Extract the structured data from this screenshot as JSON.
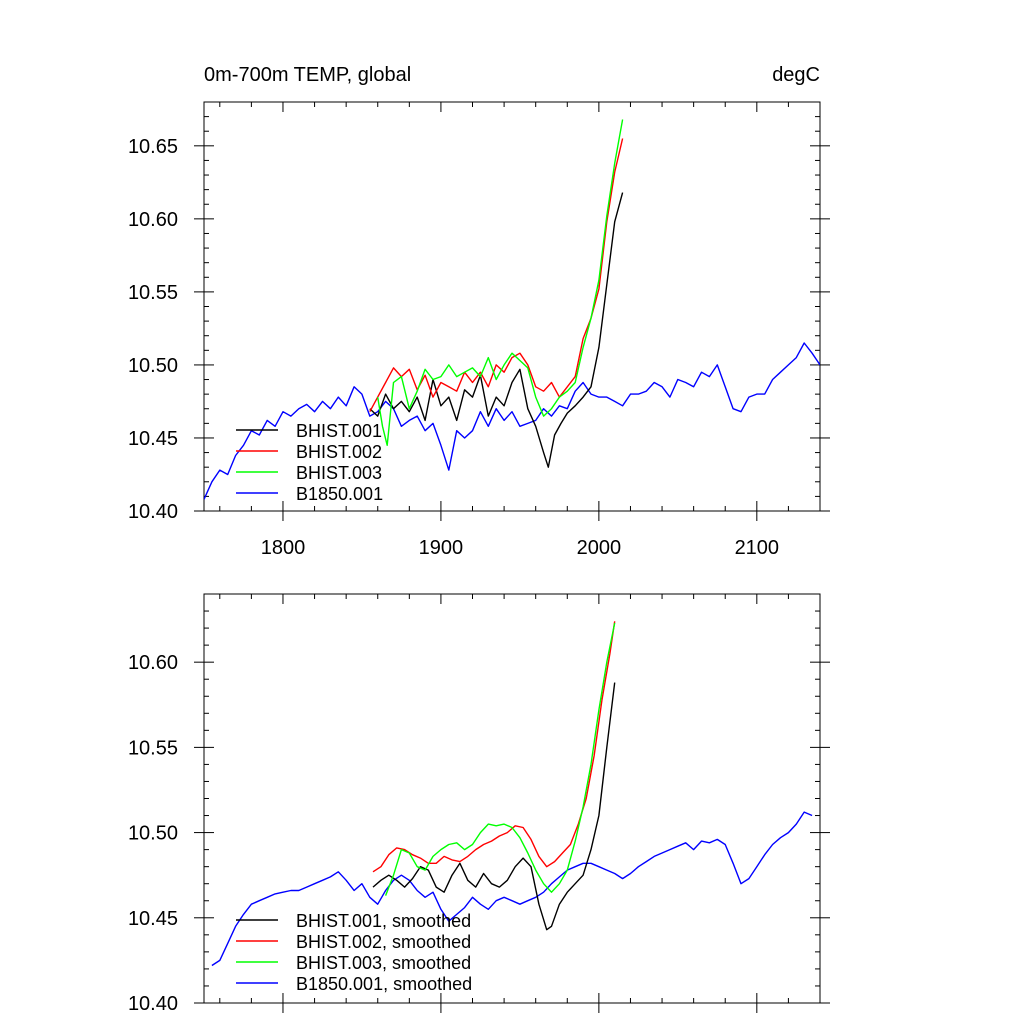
{
  "chart_data": [
    {
      "type": "line",
      "title_left": "0m-700m TEMP, global",
      "title_right": "degC",
      "xlim": [
        1750,
        2140
      ],
      "ylim": [
        10.4,
        10.68
      ],
      "xticks": [
        1800,
        1900,
        2000,
        2100
      ],
      "xtick_labels": [
        "1800",
        "1900",
        "2000",
        "2100"
      ],
      "yticks": [
        10.4,
        10.45,
        10.5,
        10.55,
        10.6,
        10.65
      ],
      "ytick_labels": [
        "10.40",
        "10.45",
        "10.50",
        "10.55",
        "10.60",
        "10.65"
      ],
      "grid": false,
      "legend_position": "bottom-left",
      "series": [
        {
          "name": "BHIST.001",
          "color": "#000000",
          "x": [
            1855,
            1860,
            1865,
            1870,
            1875,
            1880,
            1885,
            1890,
            1895,
            1900,
            1905,
            1910,
            1915,
            1920,
            1925,
            1930,
            1935,
            1940,
            1945,
            1950,
            1955,
            1960,
            1965,
            1968,
            1972,
            1976,
            1980,
            1985,
            1990,
            1995,
            2000,
            2005,
            2010,
            2015
          ],
          "y": [
            10.47,
            10.465,
            10.48,
            10.47,
            10.475,
            10.468,
            10.478,
            10.462,
            10.49,
            10.472,
            10.478,
            10.462,
            10.483,
            10.478,
            10.493,
            10.465,
            10.478,
            10.472,
            10.488,
            10.497,
            10.47,
            10.458,
            10.44,
            10.43,
            10.452,
            10.46,
            10.467,
            10.472,
            10.478,
            10.485,
            10.512,
            10.555,
            10.598,
            10.618
          ]
        },
        {
          "name": "BHIST.002",
          "color": "#ff0000",
          "x": [
            1855,
            1860,
            1865,
            1870,
            1875,
            1880,
            1885,
            1890,
            1895,
            1900,
            1905,
            1910,
            1915,
            1920,
            1925,
            1930,
            1935,
            1940,
            1945,
            1950,
            1955,
            1960,
            1965,
            1970,
            1975,
            1980,
            1985,
            1990,
            1995,
            2000,
            2005,
            2010,
            2015
          ],
          "y": [
            10.468,
            10.478,
            10.488,
            10.498,
            10.492,
            10.497,
            10.483,
            10.493,
            10.478,
            10.488,
            10.485,
            10.482,
            10.495,
            10.488,
            10.495,
            10.485,
            10.5,
            10.495,
            10.505,
            10.508,
            10.5,
            10.485,
            10.482,
            10.488,
            10.478,
            10.485,
            10.492,
            10.518,
            10.532,
            10.552,
            10.598,
            10.632,
            10.655
          ]
        },
        {
          "name": "BHIST.003",
          "color": "#00ff00",
          "x": [
            1860,
            1863,
            1866,
            1870,
            1875,
            1880,
            1885,
            1890,
            1895,
            1900,
            1905,
            1910,
            1915,
            1920,
            1925,
            1930,
            1935,
            1940,
            1945,
            1950,
            1955,
            1960,
            1965,
            1970,
            1975,
            1980,
            1985,
            1990,
            1995,
            2000,
            2005,
            2010,
            2015
          ],
          "y": [
            10.478,
            10.458,
            10.445,
            10.488,
            10.492,
            10.47,
            10.482,
            10.497,
            10.49,
            10.492,
            10.5,
            10.492,
            10.495,
            10.498,
            10.492,
            10.505,
            10.49,
            10.5,
            10.508,
            10.503,
            10.498,
            10.478,
            10.465,
            10.47,
            10.478,
            10.482,
            10.488,
            10.512,
            10.532,
            10.558,
            10.602,
            10.638,
            10.668
          ]
        },
        {
          "name": "B1850.001",
          "color": "#0000ff",
          "x": [
            1750,
            1755,
            1760,
            1765,
            1770,
            1775,
            1780,
            1785,
            1790,
            1795,
            1800,
            1805,
            1810,
            1815,
            1820,
            1825,
            1830,
            1835,
            1840,
            1845,
            1850,
            1855,
            1860,
            1865,
            1870,
            1875,
            1880,
            1885,
            1890,
            1895,
            1900,
            1905,
            1910,
            1915,
            1920,
            1925,
            1930,
            1935,
            1940,
            1945,
            1950,
            1955,
            1960,
            1965,
            1970,
            1975,
            1980,
            1985,
            1990,
            1995,
            2000,
            2005,
            2010,
            2015,
            2020,
            2025,
            2030,
            2035,
            2040,
            2045,
            2050,
            2055,
            2060,
            2065,
            2070,
            2075,
            2080,
            2085,
            2090,
            2095,
            2100,
            2105,
            2110,
            2115,
            2120,
            2125,
            2130,
            2135,
            2140
          ],
          "y": [
            10.408,
            10.42,
            10.428,
            10.425,
            10.438,
            10.445,
            10.455,
            10.452,
            10.462,
            10.458,
            10.468,
            10.465,
            10.47,
            10.473,
            10.468,
            10.475,
            10.47,
            10.478,
            10.472,
            10.485,
            10.48,
            10.465,
            10.468,
            10.475,
            10.47,
            10.458,
            10.462,
            10.465,
            10.455,
            10.46,
            10.445,
            10.428,
            10.455,
            10.45,
            10.455,
            10.468,
            10.458,
            10.47,
            10.462,
            10.468,
            10.458,
            10.46,
            10.462,
            10.47,
            10.465,
            10.472,
            10.47,
            10.482,
            10.488,
            10.48,
            10.478,
            10.478,
            10.475,
            10.472,
            10.48,
            10.48,
            10.482,
            10.488,
            10.485,
            10.478,
            10.49,
            10.488,
            10.485,
            10.495,
            10.492,
            10.5,
            10.485,
            10.47,
            10.468,
            10.478,
            10.48,
            10.48,
            10.49,
            10.495,
            10.5,
            10.505,
            10.515,
            10.508,
            10.5
          ]
        }
      ]
    },
    {
      "type": "line",
      "xlim": [
        1750,
        2140
      ],
      "ylim": [
        10.4,
        10.64
      ],
      "xticks": [
        1800,
        1900,
        2000,
        2100
      ],
      "yticks": [
        10.4,
        10.45,
        10.5,
        10.55,
        10.6
      ],
      "ytick_labels": [
        "10.40",
        "10.45",
        "10.50",
        "10.55",
        "10.60"
      ],
      "grid": false,
      "legend_position": "bottom-left",
      "series": [
        {
          "name": "BHIST.001, smoothed",
          "color": "#000000",
          "x": [
            1857,
            1862,
            1867,
            1872,
            1877,
            1882,
            1887,
            1892,
            1897,
            1902,
            1907,
            1912,
            1917,
            1922,
            1927,
            1932,
            1937,
            1942,
            1947,
            1952,
            1957,
            1962,
            1967,
            1970,
            1975,
            1980,
            1985,
            1990,
            1995,
            2000,
            2005,
            2010
          ],
          "y": [
            10.468,
            10.472,
            10.475,
            10.472,
            10.468,
            10.473,
            10.48,
            10.478,
            10.468,
            10.465,
            10.475,
            10.482,
            10.472,
            10.468,
            10.476,
            10.47,
            10.468,
            10.472,
            10.48,
            10.485,
            10.48,
            10.458,
            10.443,
            10.445,
            10.458,
            10.465,
            10.47,
            10.475,
            10.49,
            10.51,
            10.55,
            10.588
          ]
        },
        {
          "name": "BHIST.002, smoothed",
          "color": "#ff0000",
          "x": [
            1857,
            1862,
            1867,
            1872,
            1877,
            1882,
            1887,
            1892,
            1897,
            1902,
            1907,
            1912,
            1917,
            1922,
            1927,
            1932,
            1937,
            1942,
            1947,
            1952,
            1957,
            1962,
            1967,
            1972,
            1977,
            1982,
            1987,
            1992,
            1997,
            2002,
            2007,
            2010
          ],
          "y": [
            10.477,
            10.48,
            10.487,
            10.491,
            10.49,
            10.487,
            10.485,
            10.482,
            10.482,
            10.486,
            10.484,
            10.483,
            10.486,
            10.49,
            10.493,
            10.495,
            10.498,
            10.5,
            10.504,
            10.503,
            10.496,
            10.486,
            10.48,
            10.483,
            10.488,
            10.493,
            10.505,
            10.52,
            10.545,
            10.578,
            10.605,
            10.624
          ]
        },
        {
          "name": "BHIST.003, smoothed",
          "color": "#00ff00",
          "x": [
            1865,
            1870,
            1875,
            1880,
            1885,
            1890,
            1895,
            1900,
            1905,
            1910,
            1915,
            1920,
            1925,
            1930,
            1935,
            1940,
            1945,
            1950,
            1955,
            1960,
            1965,
            1970,
            1975,
            1980,
            1985,
            1990,
            1995,
            2000,
            2005,
            2010
          ],
          "y": [
            10.463,
            10.475,
            10.49,
            10.488,
            10.48,
            10.478,
            10.486,
            10.49,
            10.493,
            10.494,
            10.49,
            10.493,
            10.5,
            10.505,
            10.504,
            10.505,
            10.503,
            10.497,
            10.488,
            10.478,
            10.47,
            10.465,
            10.47,
            10.478,
            10.495,
            10.515,
            10.54,
            10.572,
            10.6,
            10.623
          ]
        },
        {
          "name": "B1850.001, smoothed",
          "color": "#0000ff",
          "x": [
            1755,
            1760,
            1765,
            1770,
            1775,
            1780,
            1785,
            1790,
            1795,
            1800,
            1805,
            1810,
            1815,
            1820,
            1825,
            1830,
            1835,
            1840,
            1845,
            1850,
            1855,
            1860,
            1865,
            1870,
            1875,
            1880,
            1885,
            1890,
            1895,
            1900,
            1905,
            1910,
            1915,
            1920,
            1925,
            1930,
            1935,
            1940,
            1945,
            1950,
            1955,
            1960,
            1965,
            1970,
            1975,
            1980,
            1985,
            1990,
            1995,
            2000,
            2005,
            2010,
            2015,
            2020,
            2025,
            2030,
            2035,
            2040,
            2045,
            2050,
            2055,
            2060,
            2065,
            2070,
            2075,
            2080,
            2085,
            2090,
            2095,
            2100,
            2105,
            2110,
            2115,
            2120,
            2125,
            2130,
            2135
          ],
          "y": [
            10.422,
            10.425,
            10.435,
            10.445,
            10.452,
            10.458,
            10.46,
            10.462,
            10.464,
            10.465,
            10.466,
            10.466,
            10.468,
            10.47,
            10.472,
            10.474,
            10.477,
            10.472,
            10.466,
            10.47,
            10.462,
            10.458,
            10.466,
            10.472,
            10.475,
            10.472,
            10.466,
            10.462,
            10.465,
            10.455,
            10.448,
            10.452,
            10.456,
            10.462,
            10.458,
            10.455,
            10.46,
            10.462,
            10.46,
            10.458,
            10.46,
            10.462,
            10.465,
            10.47,
            10.474,
            10.478,
            10.48,
            10.482,
            10.482,
            10.48,
            10.478,
            10.476,
            10.473,
            10.476,
            10.48,
            10.483,
            10.486,
            10.488,
            10.49,
            10.492,
            10.494,
            10.49,
            10.495,
            10.494,
            10.496,
            10.493,
            10.482,
            10.47,
            10.473,
            10.48,
            10.487,
            10.493,
            10.497,
            10.5,
            10.505,
            10.512,
            10.51
          ]
        }
      ]
    }
  ]
}
